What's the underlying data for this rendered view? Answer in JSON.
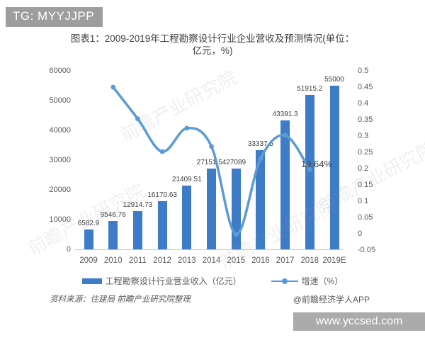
{
  "badges": {
    "top": "TG: MYYJJPP",
    "bottom": "www.yccsed.com"
  },
  "title": {
    "line1": "图表1：2009-2019年工程勘察设计行业企业营收及预测情况(单位：",
    "line2": "亿元，%)"
  },
  "chart_data": {
    "type": "bar+line",
    "categories": [
      "2009",
      "2010",
      "2011",
      "2012",
      "2013",
      "2014",
      "2015",
      "2016",
      "2017",
      "2018",
      "2019E"
    ],
    "series": [
      {
        "name": "工程勘察设计行业营业收入（亿元）",
        "type": "bar",
        "axis": "left",
        "values": [
          6582.9,
          9546.76,
          12914.73,
          16170.63,
          21409.51,
          27151.54,
          27089,
          33337.5,
          43391.3,
          51915.2,
          55000
        ],
        "labels": [
          "6582.9",
          "9546.76",
          "12914.73",
          "16170.63",
          "21409.51",
          "27151.54",
          "27089",
          "33337.5",
          "43391.3",
          "51915.2",
          "55000"
        ]
      },
      {
        "name": "增速（%）",
        "type": "line",
        "axis": "right",
        "values": [
          null,
          0.45,
          0.353,
          0.252,
          0.324,
          0.268,
          -0.002,
          0.231,
          0.302,
          0.1964,
          null
        ]
      }
    ],
    "left_axis": {
      "min": 0,
      "max": 60000,
      "ticks": [
        "0",
        "10000",
        "20000",
        "30000",
        "40000",
        "50000",
        "60000"
      ]
    },
    "right_axis": {
      "min": -0.05,
      "max": 0.5,
      "ticks": [
        "-0.05",
        "0",
        "0.05",
        "0.1",
        "0.15",
        "0.2",
        "0.25",
        "0.3",
        "0.35",
        "0.4",
        "0.45",
        "0.5"
      ]
    },
    "annotation": {
      "text": "19.64%"
    },
    "grid": false,
    "legend_position": "bottom"
  },
  "legend": {
    "bar": "工程勘察设计行业营业收入（亿元）",
    "line": "增速（%）"
  },
  "footer": {
    "source": "资料来源：住建局 前瞻产业研究院整理",
    "credit": "@前瞻经济学人APP"
  },
  "watermark": "前瞻产业研究院",
  "colors": {
    "bar": "#3e7cc7",
    "line": "#5b9bd5",
    "axis_text": "#595959",
    "badge_top_bg": "#9e9e9e",
    "badge_bottom_bg": "#ababab"
  }
}
